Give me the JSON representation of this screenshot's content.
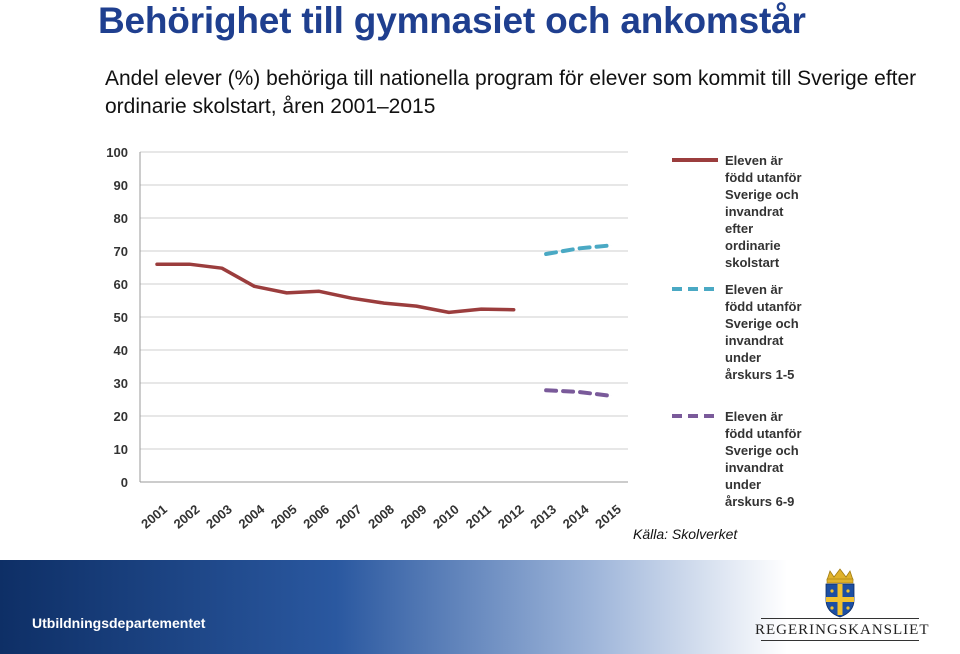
{
  "header": {
    "title": "Behörighet till gymnasiet och ankomstår",
    "subtitle": "Andel elever (%) behöriga till nationella program för elever som kommit till Sverige efter ordinarie skolstart, åren 2001–2015"
  },
  "source": "Källa: Skolverket",
  "footer": {
    "department": "Utbildningsdepartementet",
    "logo_text": "REGERINGSKANSLIET"
  },
  "chart_data": {
    "type": "line",
    "x": [
      "2001",
      "2002",
      "2003",
      "2004",
      "2005",
      "2006",
      "2007",
      "2008",
      "2009",
      "2010",
      "2011",
      "2012",
      "2013",
      "2014",
      "2015"
    ],
    "ylim": [
      0,
      100
    ],
    "yticks": [
      0,
      10,
      20,
      30,
      40,
      50,
      60,
      70,
      80,
      90,
      100
    ],
    "grid": true,
    "legend": "right",
    "series": [
      {
        "name": "Eleven är född utanför Sverige och invandrat efter ordinarie skolstart",
        "legend_lines": [
          "Eleven är",
          "född utanför",
          "Sverige och",
          "invandrat",
          "efter",
          "ordinarie",
          "skolstart"
        ],
        "color": "#9b3d3d",
        "dashed": false,
        "values": [
          66,
          66,
          64.8,
          59.3,
          57.3,
          57.8,
          55.7,
          54.2,
          53.3,
          51.4,
          52.4,
          52.2,
          null,
          null,
          null
        ]
      },
      {
        "name": "Eleven är född utanför Sverige och invandrat under årskurs 1-5",
        "legend_lines": [
          "Eleven är",
          "född utanför",
          "Sverige och",
          "invandrat",
          "under",
          "årskurs 1-5"
        ],
        "color": "#4aa9c4",
        "dashed": true,
        "values": [
          null,
          null,
          null,
          null,
          null,
          null,
          null,
          null,
          null,
          null,
          null,
          null,
          69.1,
          70.8,
          71.7
        ]
      },
      {
        "name": "Eleven är född utanför Sverige och invandrat under årskurs 6-9",
        "legend_lines": [
          "Eleven är",
          "född utanför",
          "Sverige och",
          "invandrat",
          "under",
          "årskurs 6-9"
        ],
        "color": "#7a5a9a",
        "dashed": true,
        "values": [
          null,
          null,
          null,
          null,
          null,
          null,
          null,
          null,
          null,
          null,
          null,
          null,
          27.8,
          27.3,
          26.1
        ]
      }
    ]
  }
}
